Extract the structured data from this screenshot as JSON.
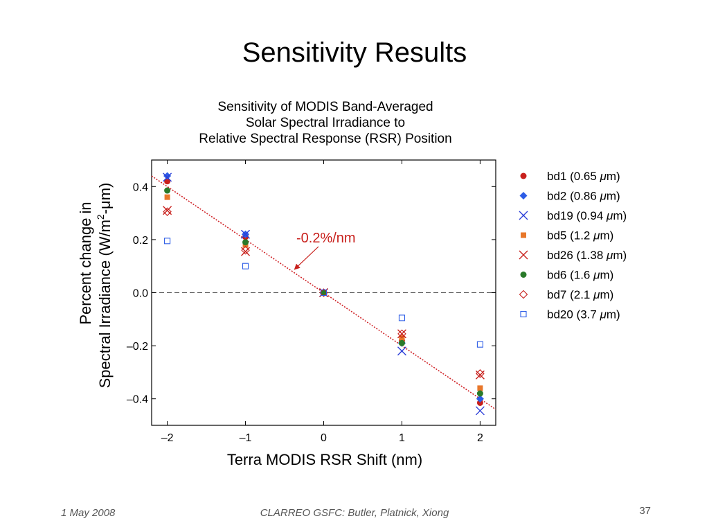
{
  "slide": {
    "title": "Sensitivity Results",
    "footer_date": "1 May 2008",
    "footer_credit": "CLARREO GSFC: Butler, Platnick, Xiong",
    "page_number": "37"
  },
  "chart_data": {
    "type": "scatter",
    "title_lines": [
      "Sensitivity of MODIS Band-Averaged",
      "Solar Spectral Irradiance to",
      "Relative Spectral Response (RSR) Position"
    ],
    "xlabel": "Terra MODIS RSR Shift (nm)",
    "ylabel_line1": "Percent change in",
    "ylabel_line2_a": "Spectral Irradiance (W/m",
    "ylabel_line2_sup": "2",
    "ylabel_line2_b": "-μm)",
    "xlim": [
      -2.2,
      2.2
    ],
    "ylim": [
      -0.5,
      0.5
    ],
    "x_ticks": [
      -2,
      -1,
      0,
      1,
      2
    ],
    "x_tick_labels": [
      "–2",
      "–1",
      "0",
      "1",
      "2"
    ],
    "y_ticks": [
      0.4,
      0.2,
      0.0,
      -0.2,
      -0.4
    ],
    "y_tick_labels": [
      "0.4",
      "0.2",
      "0.0",
      "–0.2",
      "–0.4"
    ],
    "zero_reference_line": true,
    "fit_line": {
      "slope": -0.2,
      "intercept": 0.0,
      "color": "#d0262a"
    },
    "annotation": {
      "text": "-0.2%/nm",
      "color": "#c8201c",
      "target": [
        -0.4,
        0.08
      ]
    },
    "legend_position": "right",
    "series": [
      {
        "name": "bd1 (0.65 μm)",
        "label_a": "bd1 (0.65 ",
        "label_mu": "μ",
        "label_b": "m)",
        "marker": "circle",
        "color": "#c8201c",
        "x": [
          -2,
          -1,
          0,
          1,
          2
        ],
        "y": [
          0.42,
          0.21,
          0.0,
          -0.18,
          -0.415
        ]
      },
      {
        "name": "bd2 (0.86 μm)",
        "label_a": "bd2 (0.86 ",
        "label_mu": "μ",
        "label_b": "m)",
        "marker": "diamond",
        "color": "#2c5ce6",
        "x": [
          -2,
          -1,
          0,
          1,
          2
        ],
        "y": [
          0.44,
          0.22,
          0.0,
          -0.19,
          -0.4
        ]
      },
      {
        "name": "bd19 (0.94 μm)",
        "label_a": "bd19 (0.94 ",
        "label_mu": "μ",
        "label_b": "m)",
        "marker": "x",
        "color": "#2c3fd8",
        "x": [
          -2,
          -1,
          0,
          1,
          2
        ],
        "y": [
          0.435,
          0.22,
          0.0,
          -0.22,
          -0.445
        ]
      },
      {
        "name": "bd5 (1.2 μm)",
        "label_a": "bd5 (1.2 ",
        "label_mu": "μ",
        "label_b": "m)",
        "marker": "square",
        "color": "#e8772a",
        "x": [
          -2,
          -1,
          0,
          1,
          2
        ],
        "y": [
          0.36,
          0.18,
          0.0,
          -0.17,
          -0.36
        ]
      },
      {
        "name": "bd26 (1.38 μm)",
        "label_a": "bd26 (1.38 ",
        "label_mu": "μ",
        "label_b": "m)",
        "marker": "x",
        "color": "#c8201c",
        "x": [
          -2,
          -1,
          0,
          1,
          2
        ],
        "y": [
          0.31,
          0.155,
          0.0,
          -0.155,
          -0.31
        ]
      },
      {
        "name": "bd6 (1.6 μm)",
        "label_a": "bd6 (1.6 ",
        "label_mu": "μ",
        "label_b": "m)",
        "marker": "circle",
        "color": "#2a7a2a",
        "x": [
          -2,
          -1,
          0,
          1,
          2
        ],
        "y": [
          0.385,
          0.19,
          0.0,
          -0.19,
          -0.38
        ]
      },
      {
        "name": "bd7 (2.1 μm)",
        "label_a": "bd7 (2.1 ",
        "label_mu": "μ",
        "label_b": "m)",
        "marker": "diamond-open",
        "color": "#c8201c",
        "x": [
          -2,
          -1,
          0,
          1,
          2
        ],
        "y": [
          0.305,
          0.16,
          0.0,
          -0.155,
          -0.305
        ]
      },
      {
        "name": "bd20 (3.7 μm)",
        "label_a": "bd20 (3.7 ",
        "label_mu": "μ",
        "label_b": "m)",
        "marker": "square-open",
        "color": "#2c5ce6",
        "x": [
          -2,
          -1,
          0,
          1,
          2
        ],
        "y": [
          0.195,
          0.1,
          0.0,
          -0.095,
          -0.195
        ]
      }
    ]
  }
}
